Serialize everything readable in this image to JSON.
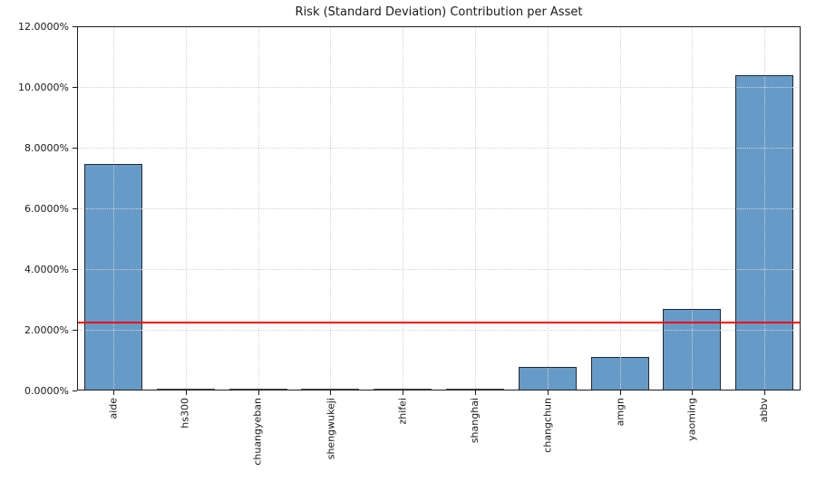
{
  "chart_data": {
    "type": "bar",
    "title": "Risk (Standard Deviation) Contribution per Asset",
    "xlabel": "",
    "ylabel": "",
    "unit": "%",
    "categories": [
      "aide",
      "hs300",
      "chuangyeban",
      "shengwukeji",
      "zhifei",
      "shanghai",
      "changchun",
      "amgn",
      "yaoming",
      "abbv"
    ],
    "values": [
      7.46,
      0.0,
      0.0,
      0.0,
      0.0,
      0.0,
      0.78,
      1.1,
      2.69,
      10.39
    ],
    "ylim": [
      0,
      12
    ],
    "ytick_values": [
      0,
      2,
      4,
      6,
      8,
      10,
      12
    ],
    "ytick_labels": [
      "0.0000%",
      "2.0000%",
      "4.0000%",
      "6.0000%",
      "8.0000%",
      "10.0000%",
      "12.0000%"
    ],
    "reference_line": {
      "value": 2.25,
      "color": "#ff0000"
    },
    "grid": "dotted",
    "legend": "none",
    "colors": {
      "bar_fill": "#669bc7",
      "bar_edge": "#23282d",
      "grid": "#d2d2d2",
      "axis": "#1c1c1c",
      "text": "#1a1a1a"
    }
  }
}
